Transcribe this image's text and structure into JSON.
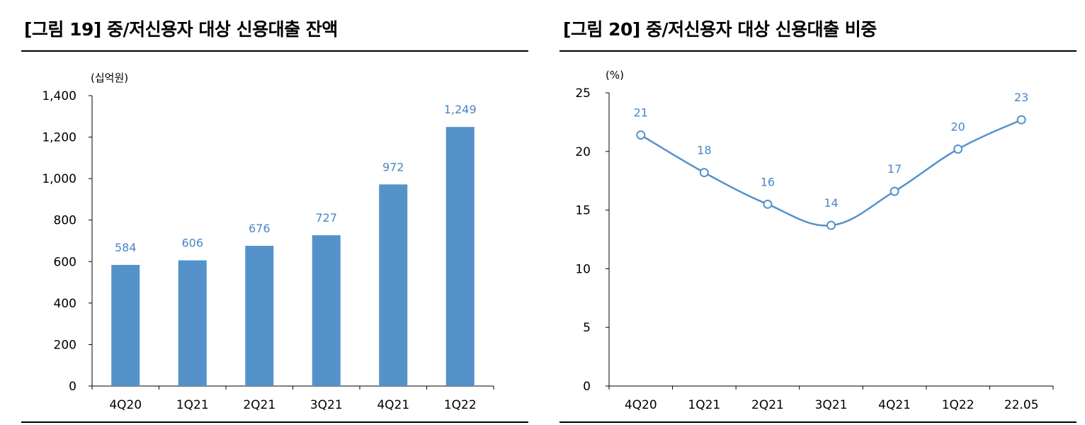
{
  "figures": [
    {
      "title": "[그림 19] 중/저신용자 대상 신용대출 잔액",
      "unit": "(십억원)"
    },
    {
      "title": "[그림 20] 중/저신용자 대상 신용대출 비중",
      "unit": "(%)"
    }
  ],
  "colors": {
    "bar": "#5592ca",
    "line": "#5592ca",
    "label": "#4a86c5",
    "axis": "#000000"
  },
  "chart_data": [
    {
      "type": "bar",
      "title": "[그림 19] 중/저신용자 대상 신용대출 잔액",
      "ylabel": "(십억원)",
      "categories": [
        "4Q20",
        "1Q21",
        "2Q21",
        "3Q21",
        "4Q21",
        "1Q22"
      ],
      "values": [
        584,
        606,
        676,
        727,
        972,
        1249
      ],
      "data_labels": [
        "584",
        "606",
        "676",
        "727",
        "972",
        "1,249"
      ],
      "ylim": [
        0,
        1400
      ],
      "yticks": [
        0,
        200,
        400,
        600,
        800,
        1000,
        1200,
        1400
      ],
      "ytick_labels": [
        "0",
        "200",
        "400",
        "600",
        "800",
        "1,000",
        "1,200",
        "1,400"
      ],
      "grid": false
    },
    {
      "type": "line",
      "title": "[그림 20] 중/저신용자 대상 신용대출 비중",
      "ylabel": "(%)",
      "categories": [
        "4Q20",
        "1Q21",
        "2Q21",
        "3Q21",
        "4Q21",
        "1Q22",
        "22.05"
      ],
      "values": [
        21.4,
        18.2,
        15.5,
        13.7,
        16.6,
        20.2,
        22.7
      ],
      "data_labels": [
        "21",
        "18",
        "16",
        "14",
        "17",
        "20",
        "23"
      ],
      "ylim": [
        0,
        25
      ],
      "yticks": [
        0,
        5,
        10,
        15,
        20,
        25
      ],
      "ytick_labels": [
        "0",
        "5",
        "10",
        "15",
        "20",
        "25"
      ],
      "grid": false
    }
  ]
}
